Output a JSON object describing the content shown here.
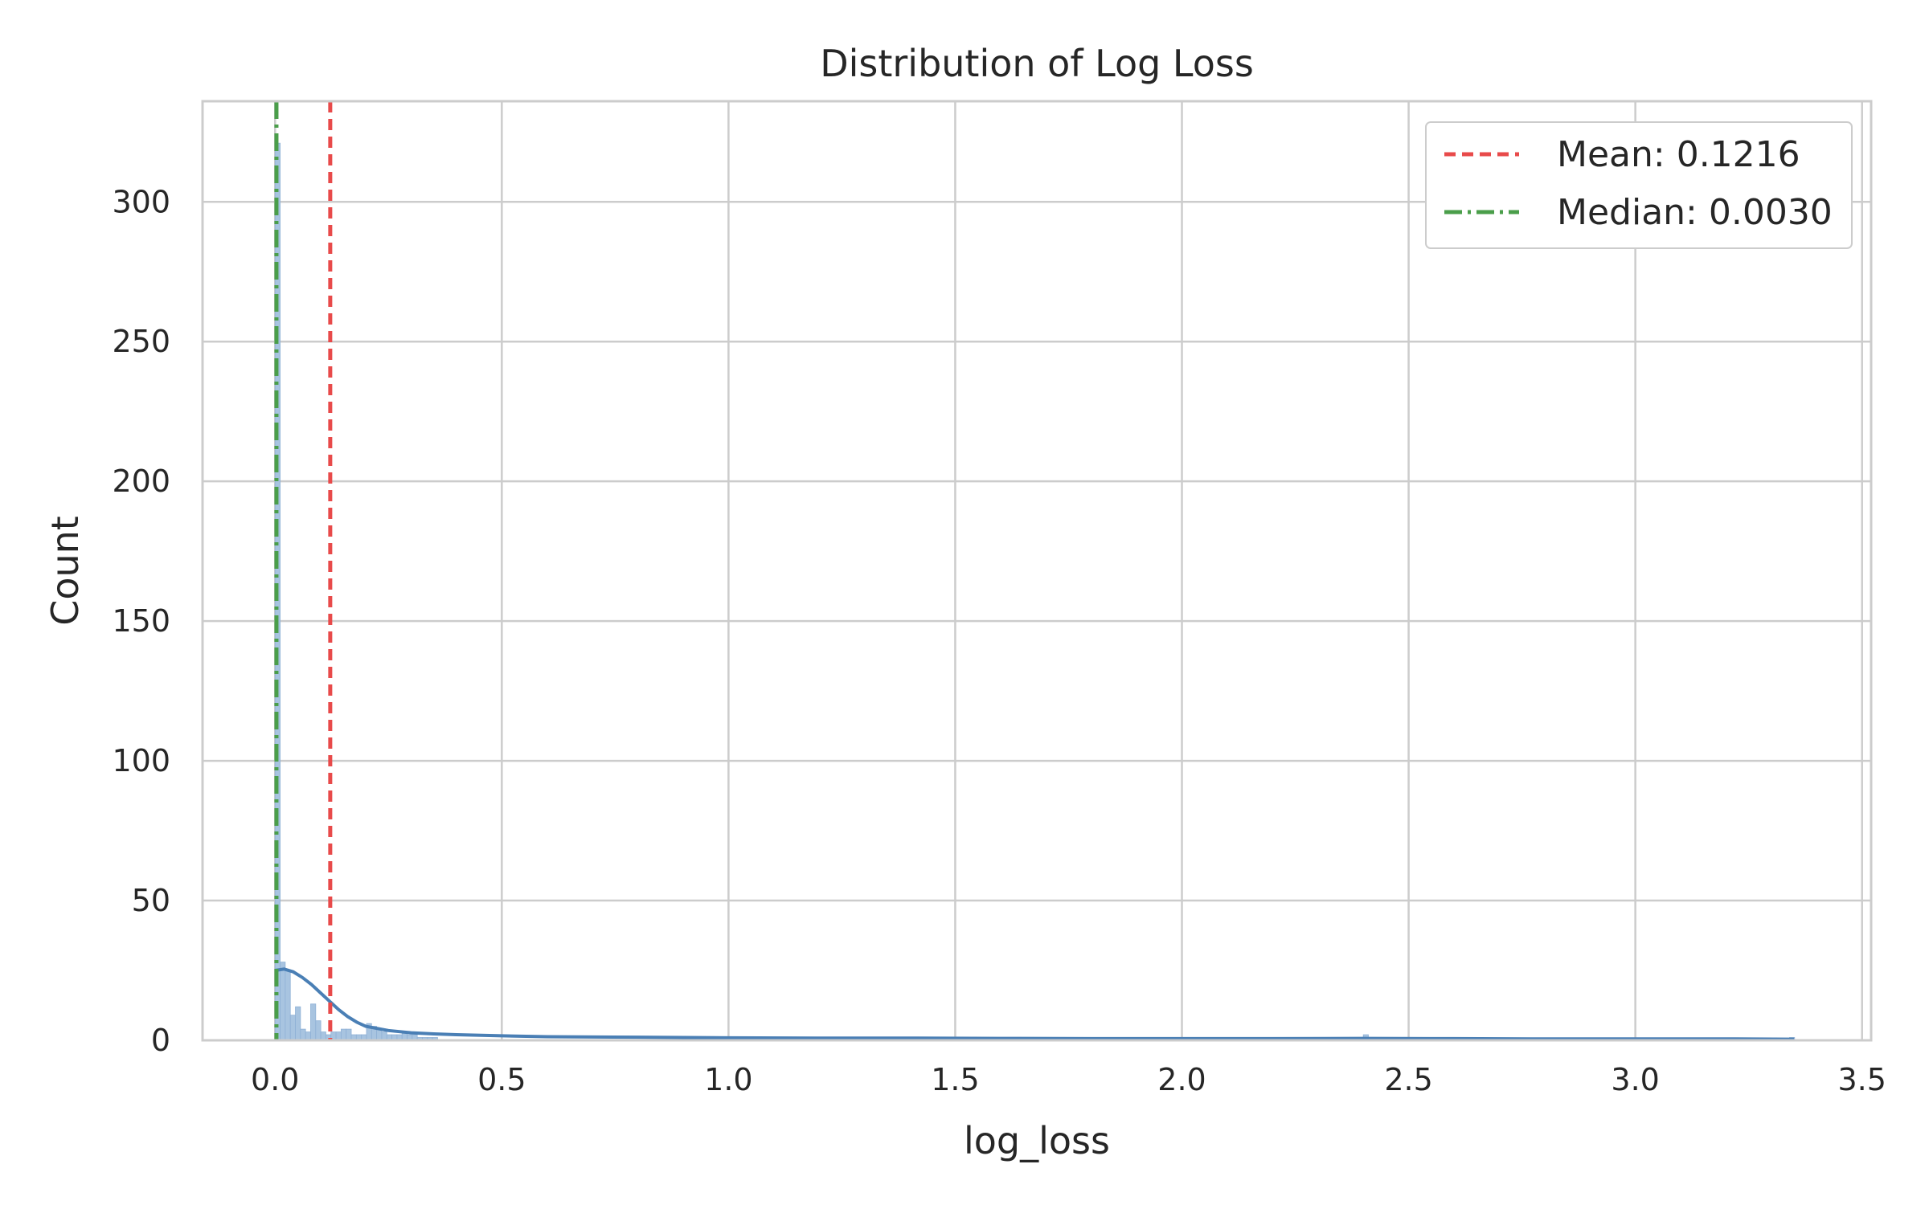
{
  "chart_data": {
    "type": "bar",
    "title": "Distribution of Log Loss",
    "xlabel": "log_loss",
    "ylabel": "Count",
    "xlim": [
      -0.16,
      3.52
    ],
    "ylim": [
      0,
      336
    ],
    "xticks": [
      "0.0",
      "0.5",
      "1.0",
      "1.5",
      "2.0",
      "2.5",
      "3.0",
      "3.5"
    ],
    "yticks": [
      "0",
      "50",
      "100",
      "150",
      "200",
      "250",
      "300"
    ],
    "grid": true,
    "legend_placement": "top-right",
    "bin_width": 0.0112,
    "bins": [
      {
        "x": 0.0,
        "count": 321
      },
      {
        "x": 0.0112,
        "count": 28
      },
      {
        "x": 0.0224,
        "count": 25
      },
      {
        "x": 0.0336,
        "count": 9
      },
      {
        "x": 0.0448,
        "count": 12
      },
      {
        "x": 0.056,
        "count": 4
      },
      {
        "x": 0.0672,
        "count": 3
      },
      {
        "x": 0.0784,
        "count": 13
      },
      {
        "x": 0.0896,
        "count": 7
      },
      {
        "x": 0.1008,
        "count": 3
      },
      {
        "x": 0.112,
        "count": 2
      },
      {
        "x": 0.1232,
        "count": 3
      },
      {
        "x": 0.1344,
        "count": 3
      },
      {
        "x": 0.1456,
        "count": 4
      },
      {
        "x": 0.1568,
        "count": 4
      },
      {
        "x": 0.168,
        "count": 2
      },
      {
        "x": 0.1792,
        "count": 2
      },
      {
        "x": 0.1904,
        "count": 2
      },
      {
        "x": 0.2016,
        "count": 6
      },
      {
        "x": 0.2128,
        "count": 5
      },
      {
        "x": 0.224,
        "count": 4
      },
      {
        "x": 0.2352,
        "count": 3
      },
      {
        "x": 0.2464,
        "count": 2
      },
      {
        "x": 0.2576,
        "count": 2
      },
      {
        "x": 0.2688,
        "count": 2
      },
      {
        "x": 0.28,
        "count": 3
      },
      {
        "x": 0.2912,
        "count": 2
      },
      {
        "x": 0.3024,
        "count": 2
      },
      {
        "x": 0.3136,
        "count": 1
      },
      {
        "x": 0.3248,
        "count": 1
      },
      {
        "x": 0.336,
        "count": 1
      },
      {
        "x": 0.3472,
        "count": 1
      },
      {
        "x": 0.93,
        "count": 1
      },
      {
        "x": 1.28,
        "count": 1
      },
      {
        "x": 1.33,
        "count": 1
      },
      {
        "x": 1.5,
        "count": 1
      },
      {
        "x": 2.4,
        "count": 2
      },
      {
        "x": 3.34,
        "count": 1
      }
    ],
    "kde": {
      "x": [
        0.0,
        0.02,
        0.04,
        0.06,
        0.08,
        0.1,
        0.12,
        0.14,
        0.16,
        0.18,
        0.2,
        0.25,
        0.3,
        0.35,
        0.4,
        0.5,
        0.6,
        0.8,
        1.0,
        1.2,
        1.4,
        1.6,
        1.8,
        2.0,
        2.2,
        2.4,
        2.6,
        2.8,
        3.0,
        3.2,
        3.35
      ],
      "y": [
        25,
        25.5,
        24.5,
        22.5,
        20,
        17,
        14,
        11,
        8.5,
        6.5,
        5,
        3.5,
        2.7,
        2.3,
        2.0,
        1.6,
        1.3,
        1.1,
        0.9,
        0.8,
        0.8,
        0.7,
        0.6,
        0.6,
        0.6,
        0.7,
        0.6,
        0.5,
        0.5,
        0.5,
        0.4
      ]
    },
    "series": [
      {
        "name": "Mean: 0.1216",
        "value": 0.1216,
        "style": "dashed",
        "color": "#e84a4a"
      },
      {
        "name": "Median: 0.0030",
        "value": 0.003,
        "style": "dashdot",
        "color": "#4a9e4a"
      }
    ],
    "colors": {
      "bar_fill": "#a8c4e0",
      "bar_edge": "#8fb1d6",
      "kde_line": "#4a7fb5",
      "grid": "#cccccc",
      "spine": "#cccccc"
    }
  }
}
